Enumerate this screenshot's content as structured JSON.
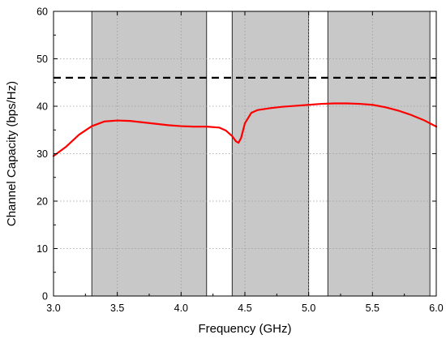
{
  "chart_data": {
    "type": "line",
    "title": "",
    "xlabel": "Frequency (GHz)",
    "ylabel": "Channel Capacity (bps/Hz)",
    "xlim": [
      3.0,
      6.0
    ],
    "ylim": [
      0,
      60
    ],
    "x_ticks": [
      3.0,
      3.5,
      4.0,
      4.5,
      5.0,
      5.5,
      6.0
    ],
    "x_tick_labels": [
      "3.0",
      "3.5",
      "4.0",
      "4.5",
      "5.0",
      "5.5",
      "6.0"
    ],
    "y_ticks": [
      0,
      10,
      20,
      30,
      40,
      50,
      60
    ],
    "y_tick_labels": [
      "0",
      "10",
      "20",
      "30",
      "40",
      "50",
      "60"
    ],
    "grid": "dotted",
    "legend": "none",
    "shaded_bands": [
      {
        "x_start": 3.3,
        "x_end": 4.2
      },
      {
        "x_start": 4.4,
        "x_end": 5.0
      },
      {
        "x_start": 5.15,
        "x_end": 5.95
      }
    ],
    "shaded_band_color": "#c8c8c8",
    "series": [
      {
        "style": "dashed",
        "color": "#000000",
        "x": [
          3.0,
          6.0
        ],
        "y": [
          46,
          46
        ]
      },
      {
        "style": "solid",
        "color": "#ff0000",
        "x": [
          3.0,
          3.1,
          3.2,
          3.3,
          3.4,
          3.5,
          3.6,
          3.7,
          3.8,
          3.9,
          4.0,
          4.1,
          4.2,
          4.3,
          4.35,
          4.4,
          4.43,
          4.45,
          4.47,
          4.5,
          4.55,
          4.6,
          4.7,
          4.8,
          4.9,
          5.0,
          5.1,
          5.2,
          5.3,
          5.4,
          5.5,
          5.6,
          5.7,
          5.8,
          5.9,
          6.0
        ],
        "y": [
          29.5,
          31.5,
          34.0,
          35.8,
          36.8,
          37.0,
          36.9,
          36.6,
          36.3,
          36.0,
          35.8,
          35.7,
          35.7,
          35.5,
          34.9,
          33.7,
          32.6,
          32.3,
          33.3,
          36.4,
          38.6,
          39.2,
          39.6,
          39.9,
          40.1,
          40.3,
          40.5,
          40.6,
          40.6,
          40.5,
          40.3,
          39.8,
          39.1,
          38.2,
          37.1,
          35.7
        ]
      }
    ]
  }
}
